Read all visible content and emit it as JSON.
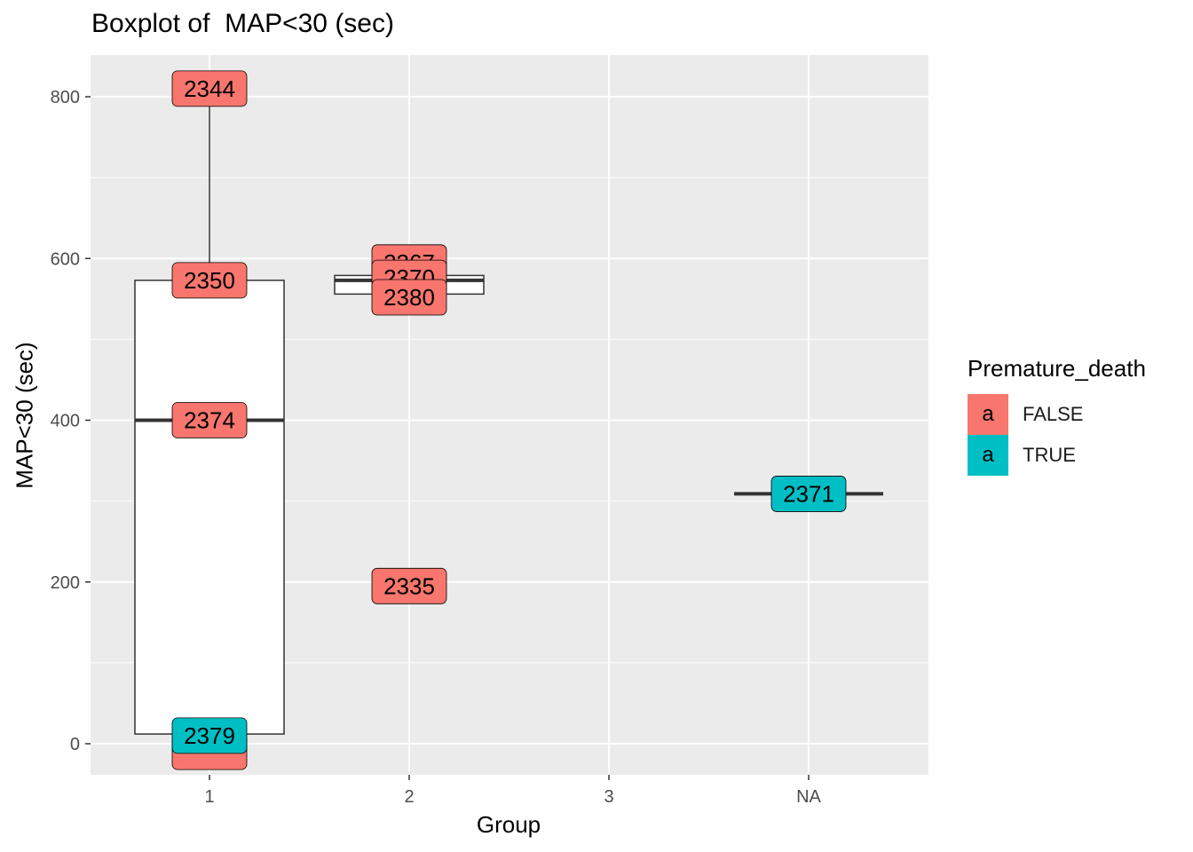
{
  "chart_data": {
    "type": "box",
    "title": "Boxplot of  MAP<30 (sec)",
    "xlabel": "Group",
    "ylabel": "MAP<30 (sec)",
    "categories": [
      "1",
      "2",
      "3",
      "NA"
    ],
    "ylim": [
      -40,
      850
    ],
    "yticks": [
      0,
      200,
      400,
      600,
      800
    ],
    "grid": true,
    "legend": {
      "title": "Premature_death",
      "placement": "right",
      "key_glyph": "a",
      "entries": [
        {
          "label": "FALSE",
          "color": "#F8766D"
        },
        {
          "label": "TRUE",
          "color": "#00BFC4"
        }
      ]
    },
    "boxes": [
      {
        "category": "1",
        "lower": 10,
        "q1": 12,
        "median": 400,
        "q3": 573,
        "upper": 800
      },
      {
        "category": "2",
        "lower": 556,
        "q1": 556,
        "median": 573,
        "q3": 579,
        "upper": 579
      },
      {
        "category": "NA",
        "lower": 309,
        "q1": 309,
        "median": 309,
        "q3": 309,
        "upper": 309
      }
    ],
    "points": [
      {
        "category": "1",
        "y": -10,
        "label": "",
        "group": "FALSE"
      },
      {
        "category": "1",
        "y": 10,
        "label": "2379",
        "group": "TRUE"
      },
      {
        "category": "1",
        "y": 400,
        "label": "2374",
        "group": "FALSE"
      },
      {
        "category": "1",
        "y": 573,
        "label": "2350",
        "group": "FALSE"
      },
      {
        "category": "1",
        "y": 810,
        "label": "2344",
        "group": "FALSE"
      },
      {
        "category": "2",
        "y": 595,
        "label": "2367",
        "group": "FALSE"
      },
      {
        "category": "2",
        "y": 576,
        "label": "2370",
        "group": "FALSE"
      },
      {
        "category": "2",
        "y": 552,
        "label": "2380",
        "group": "FALSE"
      },
      {
        "category": "2",
        "y": 195,
        "label": "2335",
        "group": "FALSE"
      },
      {
        "category": "NA",
        "y": 309,
        "label": "2371",
        "group": "TRUE"
      }
    ],
    "colors": {
      "panel": "#EBEBEB",
      "grid": "#FFFFFF",
      "box_line": "#333333",
      "tick_text": "#4D4D4D"
    }
  }
}
